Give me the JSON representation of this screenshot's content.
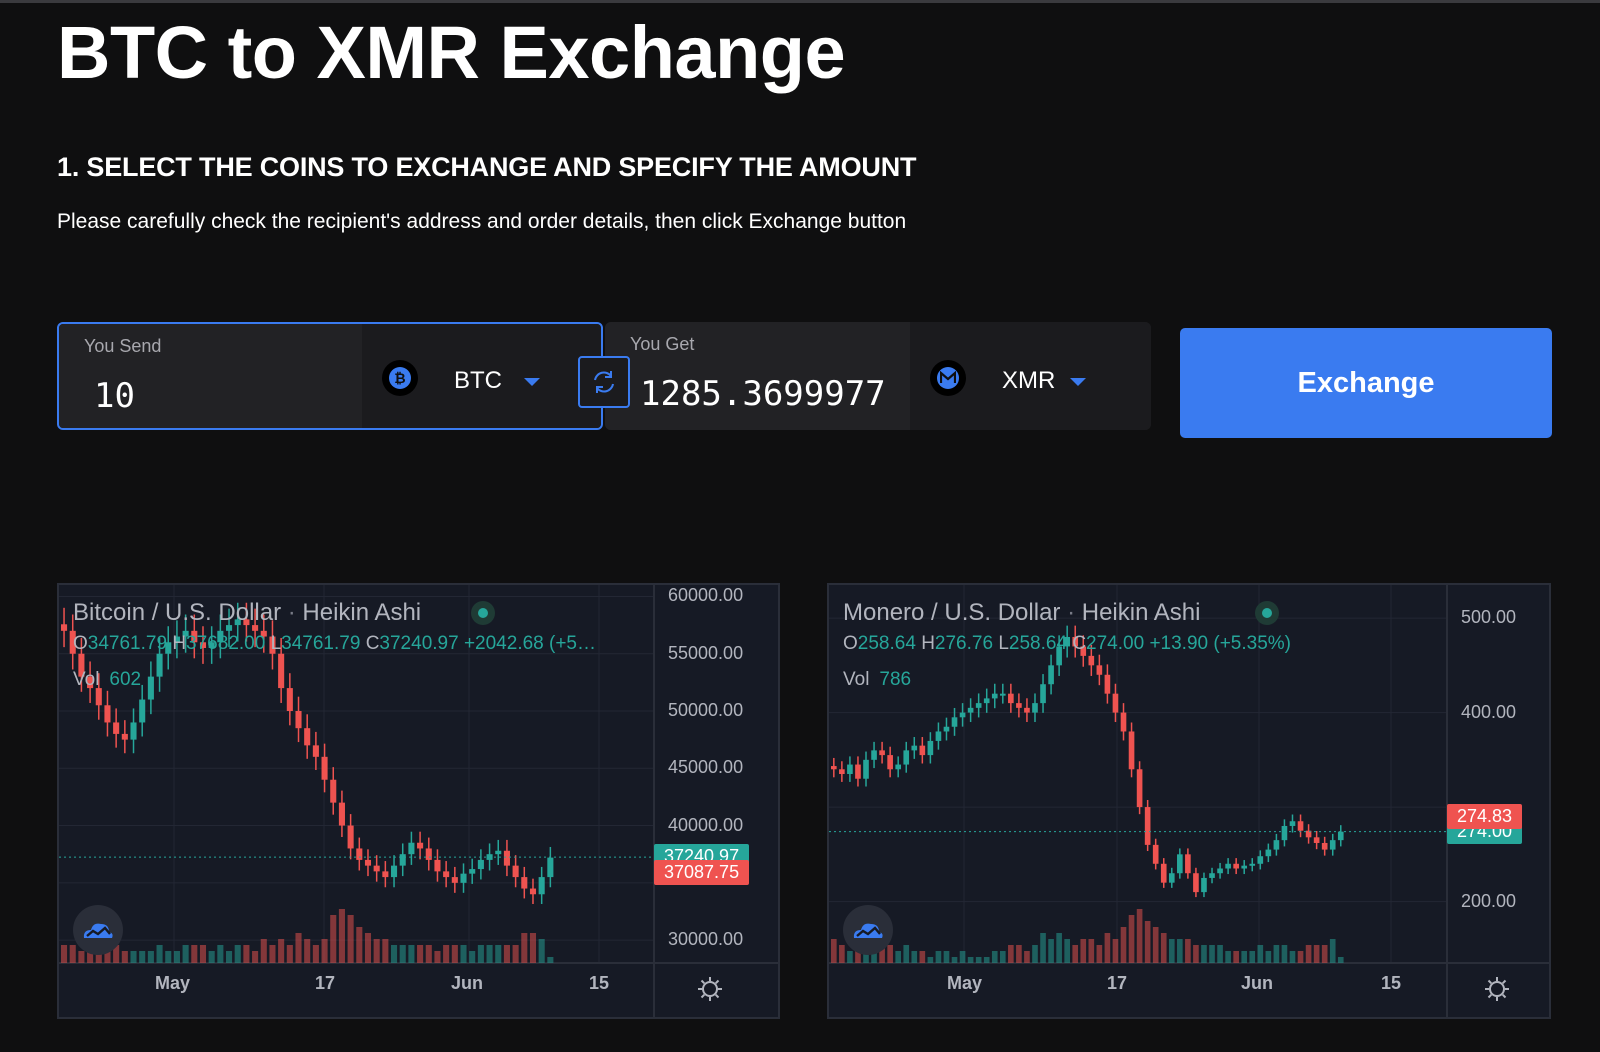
{
  "page": {
    "title": "BTC to XMR Exchange",
    "section_title": "1. SELECT THE COINS TO EXCHANGE AND SPECIFY THE AMOUNT",
    "section_subtitle": "Please carefully check the recipient's address and order details, then click Exchange button"
  },
  "exchange": {
    "send_label": "You Send",
    "send_value": "10",
    "send_coin": "BTC",
    "send_coin_icon": "bitcoin-icon",
    "get_label": "You Get",
    "get_value": "1285.3699977",
    "get_coin": "XMR",
    "get_coin_icon": "monero-icon",
    "swap_icon": "refresh-icon",
    "button_label": "Exchange",
    "accent_color": "#3a7bf0"
  },
  "charts": [
    {
      "symbol": "Bitcoin / U.S. Dollar",
      "style": "Heikin Ashi",
      "ohlc": {
        "o_label": "O",
        "o": "34761.79",
        "h_label": "H",
        "h": "37682.00",
        "l_label": "L",
        "l": "34761.79",
        "c_label": "C",
        "c": "37240.97",
        "change": "+2042.68 (+5…"
      },
      "vol_label": "Vol",
      "vol": "602",
      "y_ticks": [
        "60000.00",
        "55000.00",
        "50000.00",
        "45000.00",
        "40000.00",
        "30000.00"
      ],
      "x_ticks": [
        "May",
        "17",
        "Jun",
        "15"
      ],
      "last_price": "37240.97",
      "prev_price": "37087.75"
    },
    {
      "symbol": "Monero / U.S. Dollar",
      "style": "Heikin Ashi",
      "ohlc": {
        "o_label": "O",
        "o": "258.64",
        "h_label": "H",
        "h": "276.76",
        "l_label": "L",
        "l": "258.64",
        "c_label": "C",
        "c": "274.00",
        "change": "+13.90 (+5.35%)"
      },
      "vol_label": "Vol",
      "vol": "786",
      "y_ticks": [
        "500.00",
        "400.00",
        "200.00"
      ],
      "x_ticks": [
        "May",
        "17",
        "Jun",
        "15"
      ],
      "last_price": "274.00",
      "prev_price": "274.83"
    }
  ],
  "chart_data": [
    {
      "type": "candlestick",
      "title": "Bitcoin / U.S. Dollar · Heikin Ashi",
      "ylim": [
        28000,
        61000
      ],
      "up_color": "#26a69a",
      "down_color": "#ef5350",
      "closes": [
        57000,
        55000,
        53000,
        52000,
        50500,
        49000,
        48000,
        47500,
        49000,
        51000,
        53000,
        55000,
        56000,
        56500,
        57000,
        56000,
        55500,
        56000,
        57000,
        57500,
        58000,
        57500,
        57000,
        56500,
        55000,
        52000,
        50000,
        48500,
        47000,
        46000,
        44000,
        42000,
        40000,
        38000,
        37000,
        36500,
        36000,
        35500,
        36500,
        37500,
        38500,
        38000,
        37000,
        36000,
        35500,
        35000,
        35800,
        36200,
        37000,
        37500,
        37800,
        36500,
        35500,
        34500,
        34000,
        35500,
        37200
      ],
      "volumes": [
        3,
        3,
        2,
        3,
        2,
        2,
        3,
        2,
        2,
        2,
        2,
        3,
        2,
        2,
        3,
        3,
        3,
        2,
        3,
        2,
        3,
        3,
        2,
        4,
        3,
        4,
        3,
        5,
        4,
        3,
        4,
        8,
        9,
        8,
        6,
        5,
        4,
        4,
        3,
        3,
        3,
        3,
        3,
        2,
        3,
        3,
        3,
        2,
        3,
        3,
        3,
        3,
        3,
        5,
        5,
        4,
        1
      ]
    },
    {
      "type": "candlestick",
      "title": "Monero / U.S. Dollar · Heikin Ashi",
      "ylim": [
        135,
        535
      ],
      "up_color": "#26a69a",
      "down_color": "#ef5350",
      "closes": [
        340,
        335,
        345,
        330,
        350,
        360,
        355,
        340,
        345,
        360,
        365,
        355,
        370,
        380,
        385,
        395,
        400,
        405,
        410,
        415,
        420,
        420,
        410,
        405,
        400,
        410,
        430,
        450,
        470,
        480,
        470,
        460,
        450,
        440,
        420,
        400,
        380,
        340,
        300,
        260,
        240,
        220,
        230,
        250,
        230,
        210,
        225,
        230,
        235,
        240,
        235,
        238,
        240,
        248,
        255,
        265,
        280,
        285,
        275,
        268,
        262,
        255,
        265,
        274
      ],
      "volumes": [
        4,
        3,
        2,
        3,
        2,
        3,
        4,
        3,
        2,
        3,
        2,
        2,
        1,
        2,
        2,
        1,
        2,
        1,
        1,
        1,
        2,
        2,
        3,
        3,
        2,
        3,
        5,
        4,
        5,
        4,
        3,
        4,
        4,
        3,
        5,
        4,
        6,
        8,
        9,
        7,
        6,
        5,
        4,
        4,
        4,
        3,
        3,
        3,
        3,
        2,
        2,
        2,
        2,
        3,
        2,
        3,
        3,
        2,
        2,
        3,
        3,
        3,
        4,
        1
      ]
    }
  ]
}
